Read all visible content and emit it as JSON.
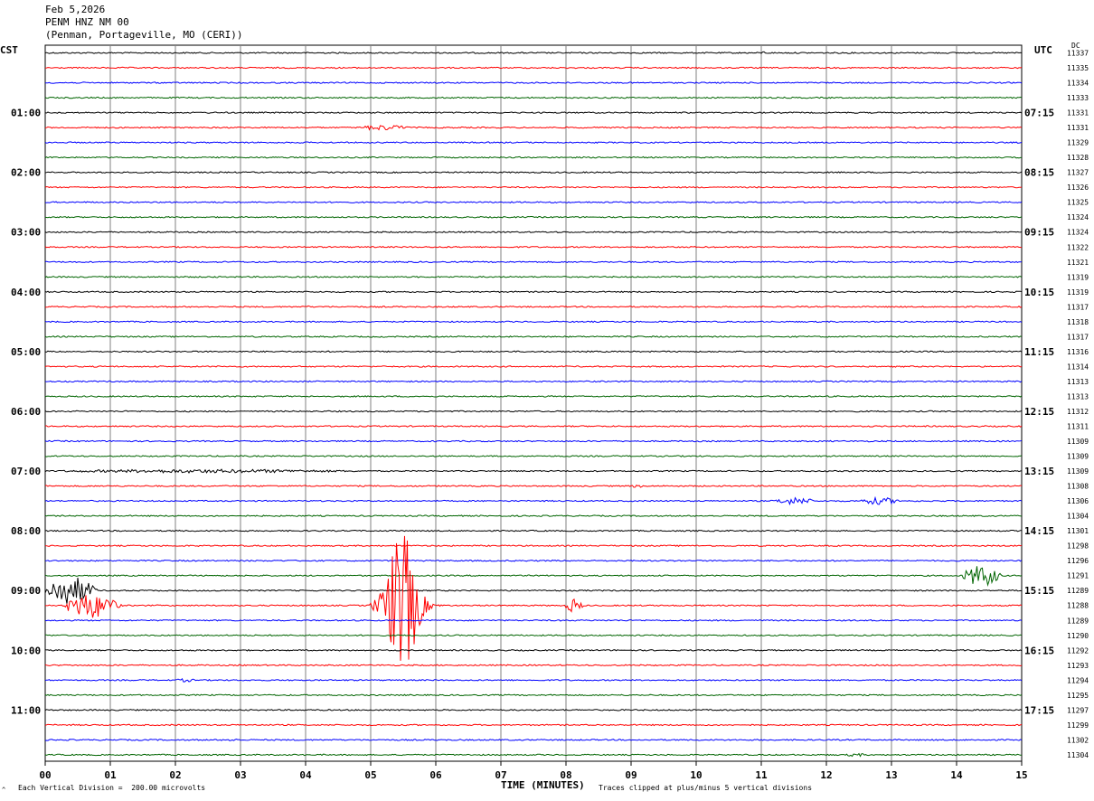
{
  "header": {
    "date": "Feb 5,2026",
    "station": "PENM HNZ NM 00",
    "location": "(Penman, Portageville, MO (CERI))"
  },
  "corners": {
    "left": "CST",
    "right": "UTC",
    "dc": "DC"
  },
  "footer": {
    "vertical_division": "Each Vertical Division =  200.00 microvolts",
    "xlabel": "TIME (MINUTES)",
    "clipping": "Traces clipped at plus/minus 5 vertical divisions",
    "mark": "^"
  },
  "colors": {
    "cycle": [
      "#000000",
      "#ff0000",
      "#0000ff",
      "#006400"
    ],
    "grid": "#808080"
  },
  "chart_data": {
    "type": "line",
    "subtype": "helicorder",
    "title": "PENM HNZ NM 00",
    "xlabel": "TIME (MINUTES)",
    "xlim": [
      0,
      15
    ],
    "x_ticks": [
      "00",
      "01",
      "02",
      "03",
      "04",
      "05",
      "06",
      "07",
      "08",
      "09",
      "10",
      "11",
      "12",
      "13",
      "14",
      "15"
    ],
    "minutes_per_line": 15,
    "line_count": 48,
    "vertical_division_microvolts": 200,
    "left_hour_labels": [
      "01:00",
      "02:00",
      "03:00",
      "04:00",
      "05:00",
      "06:00",
      "07:00",
      "08:00",
      "09:00",
      "10:00",
      "11:00"
    ],
    "left_label_lines": [
      4,
      8,
      12,
      16,
      20,
      24,
      28,
      32,
      36,
      40,
      44
    ],
    "right_hour_labels": [
      "07:15",
      "08:15",
      "09:15",
      "10:15",
      "11:15",
      "12:15",
      "13:15",
      "14:15",
      "15:15",
      "16:15",
      "17:15"
    ],
    "dc_offsets": [
      "11337",
      "11335",
      "11334",
      "11333",
      "11331",
      "11331",
      "11329",
      "11328",
      "11327",
      "11326",
      "11325",
      "11324",
      "11324",
      "11322",
      "11321",
      "11319",
      "11319",
      "11317",
      "11318",
      "11317",
      "11316",
      "11314",
      "11313",
      "11313",
      "11312",
      "11311",
      "11309",
      "11309",
      "11309",
      "11308",
      "11306",
      "11304",
      "11301",
      "11298",
      "11296",
      "11291",
      "11289",
      "11288",
      "11289",
      "11290",
      "11292",
      "11293",
      "11294",
      "11295",
      "11297",
      "11299",
      "11302",
      "11304"
    ],
    "events": [
      {
        "line": 0,
        "start_min": 6.3,
        "end_min": 6.4,
        "amp": 2
      },
      {
        "line": 0,
        "start_min": 11.0,
        "end_min": 11.1,
        "amp": 2
      },
      {
        "line": 5,
        "start_min": 4.8,
        "end_min": 6.1,
        "amp": 3
      },
      {
        "line": 17,
        "start_min": 4.0,
        "end_min": 4.1,
        "amp": 2
      },
      {
        "line": 28,
        "start_min": 0.0,
        "end_min": 8.0,
        "amp": 2
      },
      {
        "line": 29,
        "start_min": 9.0,
        "end_min": 9.3,
        "amp": 2
      },
      {
        "line": 30,
        "start_min": 11.2,
        "end_min": 12.2,
        "amp": 4
      },
      {
        "line": 30,
        "start_min": 12.5,
        "end_min": 13.5,
        "amp": 4
      },
      {
        "line": 35,
        "start_min": 14.1,
        "end_min": 15.0,
        "amp": 12
      },
      {
        "line": 36,
        "start_min": 0.0,
        "end_min": 1.2,
        "amp": 16
      },
      {
        "line": 37,
        "start_min": 0.3,
        "end_min": 1.6,
        "amp": 14
      },
      {
        "line": 37,
        "start_min": 5.0,
        "end_min": 6.6,
        "amp": 80
      },
      {
        "line": 37,
        "start_min": 8.0,
        "end_min": 8.4,
        "amp": 8
      },
      {
        "line": 42,
        "start_min": 2.0,
        "end_min": 2.5,
        "amp": 2
      },
      {
        "line": 46,
        "start_min": 2.8,
        "end_min": 3.1,
        "amp": 2
      },
      {
        "line": 47,
        "start_min": 12.3,
        "end_min": 12.8,
        "amp": 2
      }
    ]
  }
}
